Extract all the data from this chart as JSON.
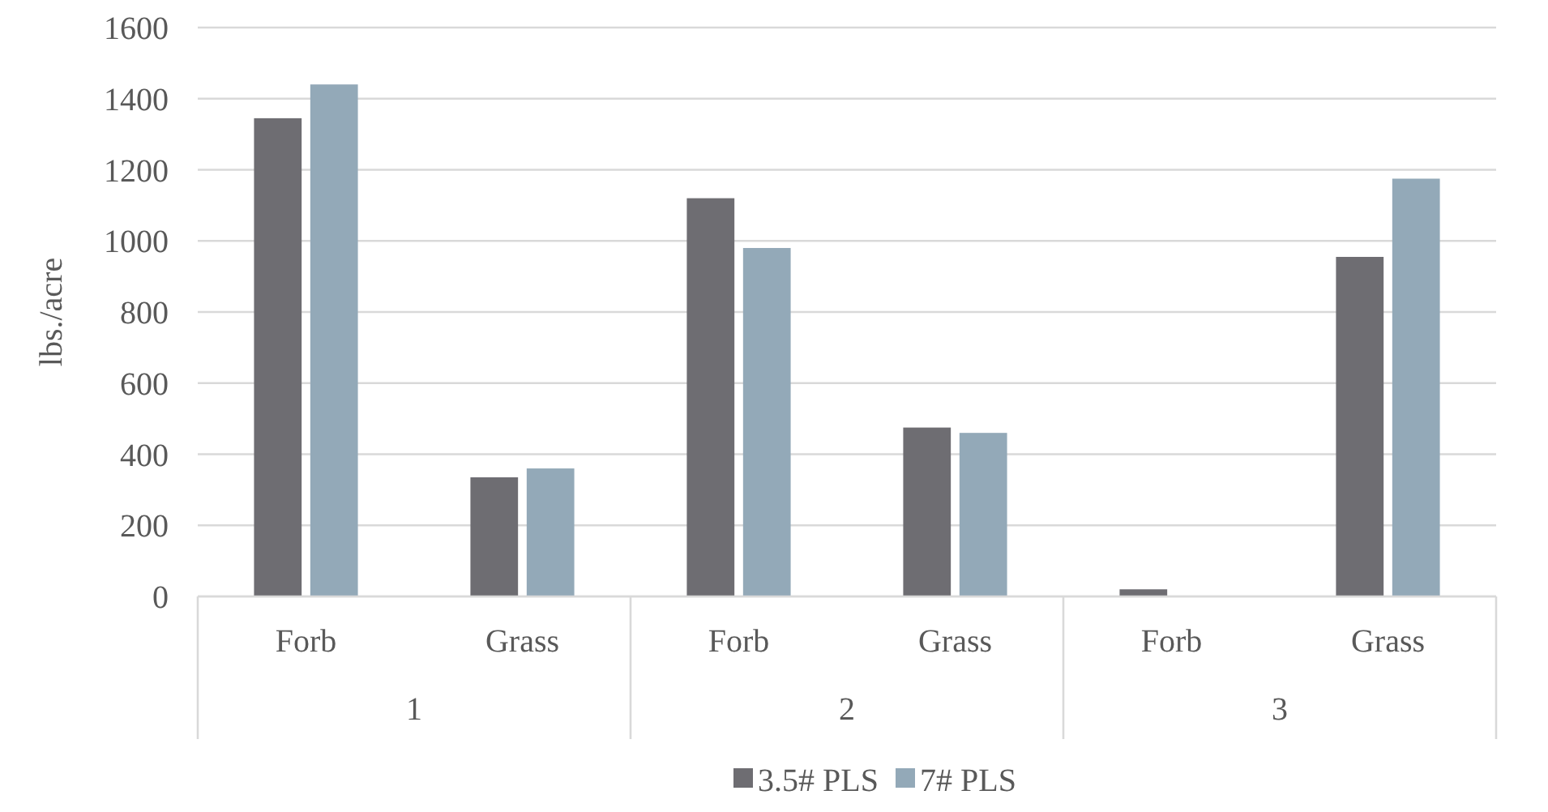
{
  "chart_data": {
    "type": "bar",
    "ylabel": "lbs./acre",
    "categories": [
      "Forb",
      "Grass",
      "Forb",
      "Grass",
      "Forb",
      "Grass"
    ],
    "annotations": [
      "1",
      "2",
      "3"
    ],
    "series": [
      {
        "name": "3.5# PLS",
        "color": "#6e6d72",
        "values": [
          1345,
          335,
          1120,
          475,
          20,
          955
        ]
      },
      {
        "name": "7# PLS",
        "color": "#93a9b8",
        "values": [
          1440,
          360,
          980,
          460,
          0,
          1175
        ]
      }
    ],
    "ylim": [
      0,
      1600
    ],
    "yticks": [
      0,
      200,
      400,
      600,
      800,
      1000,
      1200,
      1400,
      1600
    ],
    "grid": "y",
    "legend": "bottom"
  }
}
